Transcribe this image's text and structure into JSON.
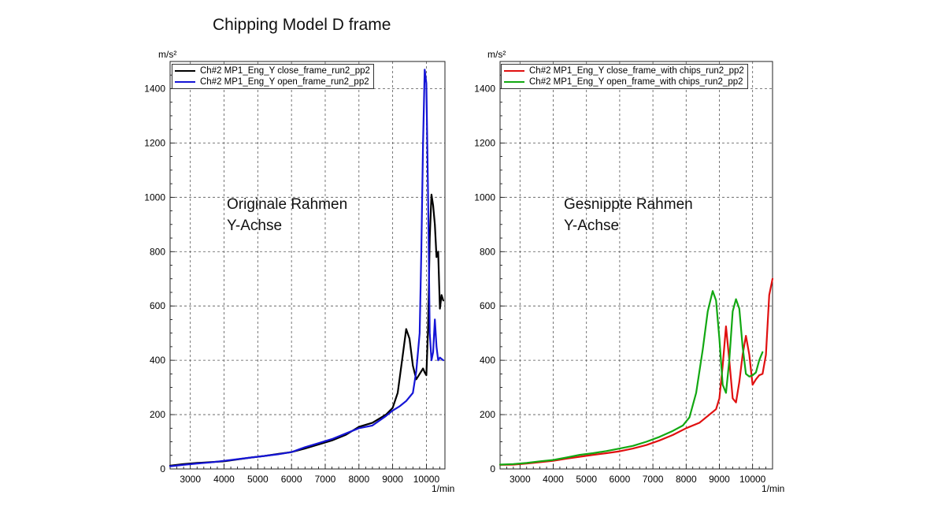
{
  "slide": {
    "title": "Chipping Model D frame"
  },
  "charts": [
    {
      "overlay_lines": [
        "Originale Rahmen",
        "Y-Achse"
      ],
      "legend": [
        {
          "label": "Ch#2  MP1_Eng_Y  close_frame_run2_pp2",
          "color": "#000000"
        },
        {
          "label": "Ch#2  MP1_Eng_Y  open_frame_run2_pp2",
          "color": "#1515d6"
        }
      ]
    },
    {
      "overlay_lines": [
        "Gesnippte Rahmen",
        "Y-Achse"
      ],
      "legend": [
        {
          "label": "Ch#2  MP1_Eng_Y  close_frame_with chips_run2_pp2",
          "color": "#e01010"
        },
        {
          "label": "Ch#2  MP1_Eng_Y  open_frame_with chips_run2_pp2",
          "color": "#12a812"
        }
      ]
    }
  ],
  "chart_data": [
    {
      "type": "line",
      "ylabel": "m/s²",
      "xlabel": "1/min",
      "xlim": [
        2400,
        10550
      ],
      "ylim": [
        0,
        1500
      ],
      "xticks": [
        3000,
        4000,
        5000,
        6000,
        7000,
        8000,
        9000,
        10000
      ],
      "yticks": [
        0,
        200,
        400,
        600,
        800,
        1000,
        1200,
        1400
      ],
      "grid": true,
      "legend_position": "top-left",
      "series": [
        {
          "name": "Ch#2  MP1_Eng_Y  close_frame_run2_pp2",
          "color": "#000000",
          "x": [
            2400,
            2800,
            3200,
            3600,
            4000,
            4400,
            4800,
            5200,
            5600,
            6000,
            6400,
            6800,
            7200,
            7600,
            8000,
            8400,
            8800,
            9000,
            9150,
            9300,
            9400,
            9500,
            9600,
            9700,
            9800,
            9900,
            9950,
            10000,
            10050,
            10100,
            10150,
            10200,
            10250,
            10300,
            10350,
            10400,
            10450,
            10500
          ],
          "y": [
            12,
            18,
            22,
            25,
            28,
            35,
            42,
            48,
            55,
            62,
            75,
            90,
            105,
            125,
            155,
            170,
            200,
            225,
            280,
            420,
            515,
            480,
            380,
            330,
            350,
            370,
            355,
            345,
            520,
            850,
            1010,
            970,
            900,
            780,
            800,
            590,
            640,
            620
          ]
        },
        {
          "name": "Ch#2  MP1_Eng_Y  open_frame_run2_pp2",
          "color": "#1515d6",
          "x": [
            2400,
            2800,
            3200,
            3600,
            4000,
            4400,
            4800,
            5200,
            5600,
            6000,
            6400,
            6800,
            7200,
            7600,
            8000,
            8400,
            8800,
            9000,
            9200,
            9400,
            9600,
            9700,
            9800,
            9850,
            9900,
            9950,
            10000,
            10050,
            10100,
            10150,
            10200,
            10250,
            10300,
            10350,
            10400,
            10450,
            10500
          ],
          "y": [
            10,
            15,
            20,
            24,
            30,
            36,
            42,
            48,
            54,
            62,
            80,
            95,
            110,
            130,
            150,
            160,
            195,
            215,
            230,
            250,
            280,
            360,
            500,
            800,
            1200,
            1470,
            1420,
            1000,
            500,
            400,
            430,
            550,
            450,
            400,
            410,
            405,
            400
          ]
        }
      ]
    },
    {
      "type": "line",
      "ylabel": "m/s²",
      "xlabel": "1/min",
      "xlim": [
        2400,
        10600
      ],
      "ylim": [
        0,
        1500
      ],
      "xticks": [
        3000,
        4000,
        5000,
        6000,
        7000,
        8000,
        9000,
        10000
      ],
      "yticks": [
        0,
        200,
        400,
        600,
        800,
        1000,
        1200,
        1400
      ],
      "grid": true,
      "legend_position": "top-left",
      "series": [
        {
          "name": "Ch#2  MP1_Eng_Y  close_frame_with chips_run2_pp2",
          "color": "#e01010",
          "x": [
            2400,
            2800,
            3200,
            3600,
            4000,
            4400,
            4800,
            5200,
            5600,
            6000,
            6400,
            6800,
            7200,
            7600,
            8000,
            8400,
            8700,
            8900,
            9000,
            9100,
            9200,
            9300,
            9400,
            9500,
            9600,
            9700,
            9800,
            9900,
            10000,
            10100,
            10200,
            10300,
            10400,
            10500,
            10600
          ],
          "y": [
            15,
            16,
            20,
            25,
            30,
            38,
            45,
            52,
            58,
            65,
            75,
            88,
            105,
            125,
            150,
            170,
            200,
            220,
            260,
            380,
            525,
            400,
            260,
            245,
            320,
            420,
            490,
            420,
            310,
            330,
            345,
            350,
            420,
            640,
            700
          ]
        },
        {
          "name": "Ch#2  MP1_Eng_Y  open_frame_with chips_run2_pp2",
          "color": "#12a812",
          "x": [
            2400,
            2800,
            3200,
            3600,
            4000,
            4400,
            4800,
            5200,
            5600,
            6000,
            6400,
            6800,
            7200,
            7600,
            7900,
            8100,
            8300,
            8500,
            8650,
            8800,
            8900,
            9000,
            9100,
            9200,
            9300,
            9400,
            9500,
            9600,
            9700,
            9800,
            9900,
            10000,
            10100,
            10200,
            10300
          ],
          "y": [
            16,
            18,
            22,
            28,
            33,
            42,
            52,
            58,
            66,
            75,
            85,
            100,
            118,
            140,
            160,
            190,
            280,
            440,
            580,
            655,
            620,
            480,
            310,
            280,
            400,
            580,
            625,
            590,
            450,
            350,
            340,
            345,
            355,
            400,
            430
          ]
        }
      ]
    }
  ]
}
